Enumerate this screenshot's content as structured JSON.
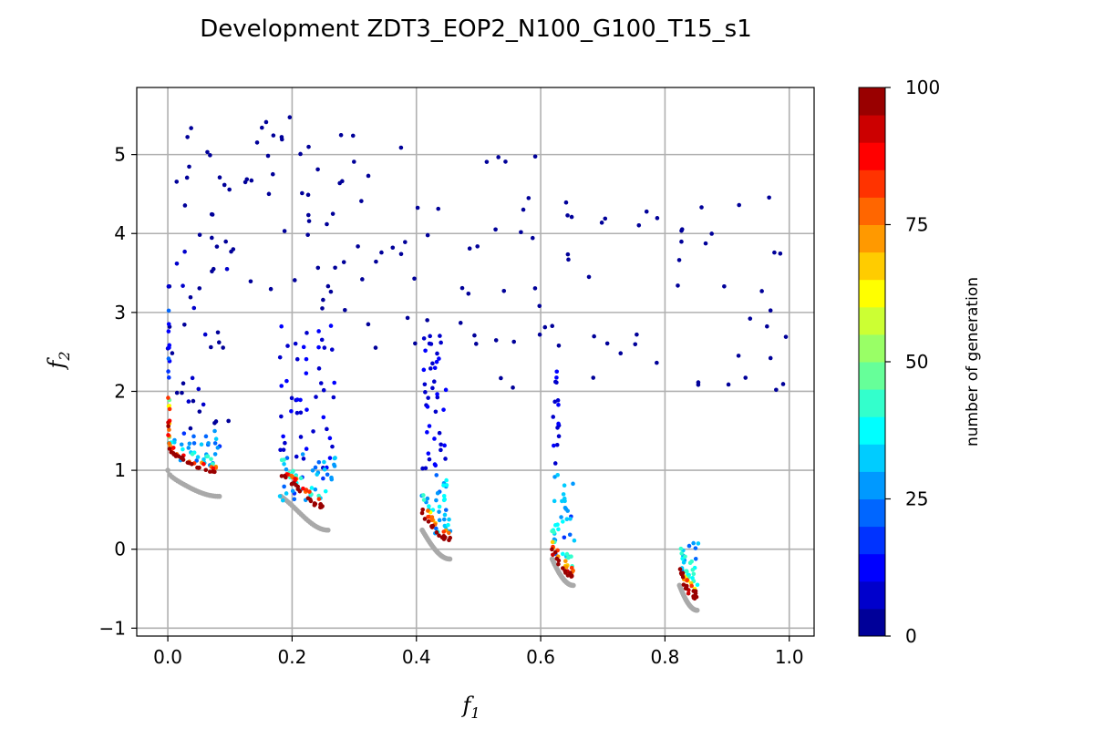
{
  "chart_data": {
    "type": "scatter",
    "title": "Development ZDT3_EOP2_N100_G100_T15_s1",
    "xlabel": "f",
    "xlabel_sub": "1",
    "ylabel": "f",
    "ylabel_sub": "2",
    "xlim": [
      -0.05,
      1.04
    ],
    "ylim": [
      -1.1,
      5.85
    ],
    "xticks": [
      0.0,
      0.2,
      0.4,
      0.6,
      0.8,
      1.0
    ],
    "xtick_labels": [
      "0.0",
      "0.2",
      "0.4",
      "0.6",
      "0.8",
      "1.0"
    ],
    "yticks": [
      -1,
      0,
      1,
      2,
      3,
      4,
      5
    ],
    "ytick_labels": [
      "−1",
      "0",
      "1",
      "2",
      "3",
      "4",
      "5"
    ],
    "grid": true,
    "colorbar": {
      "label": "number of generation",
      "min": 0,
      "max": 100,
      "ticks": [
        0,
        25,
        50,
        75,
        100
      ],
      "tick_labels": [
        "0",
        "25",
        "50",
        "75",
        "100"
      ],
      "colormap": "jet",
      "levels": 20
    },
    "pareto_front_color": "#a9a9a9",
    "pareto_segments": [
      [
        0.0,
        0.083,
        1.0,
        0.66
      ],
      [
        0.1822,
        0.2578,
        0.66,
        0.24
      ],
      [
        0.4093,
        0.4539,
        0.25,
        -0.15
      ],
      [
        0.6184,
        0.6525,
        -0.08,
        -0.46
      ],
      [
        0.8233,
        0.8518,
        -0.47,
        -0.77
      ]
    ],
    "clusters": [
      {
        "segment": 0,
        "gen": [
          96,
          100
        ],
        "n": 20,
        "shift": [
          0.3,
          0.32
        ],
        "jitter": 0.02
      },
      {
        "segment": 1,
        "gen": [
          96,
          100
        ],
        "n": 20,
        "shift": [
          0.26,
          0.3
        ],
        "jitter": 0.02
      },
      {
        "segment": 2,
        "gen": [
          96,
          100
        ],
        "n": 16,
        "shift": [
          0.22,
          0.28
        ],
        "jitter": 0.02
      },
      {
        "segment": 3,
        "gen": [
          94,
          100
        ],
        "n": 16,
        "shift": [
          0.1,
          0.15
        ],
        "jitter": 0.03
      },
      {
        "segment": 4,
        "gen": [
          94,
          100
        ],
        "n": 18,
        "shift": [
          0.14,
          0.25
        ],
        "jitter": 0.03
      },
      {
        "segment": 0,
        "gen": [
          72,
          90
        ],
        "n": 14,
        "shift": [
          0.33,
          0.4
        ],
        "jitter": 0.03
      },
      {
        "segment": 1,
        "gen": [
          72,
          90
        ],
        "n": 14,
        "shift": [
          0.31,
          0.38
        ],
        "jitter": 0.03
      },
      {
        "segment": 2,
        "gen": [
          62,
          85
        ],
        "n": 12,
        "shift": [
          0.3,
          0.38
        ],
        "jitter": 0.02
      },
      {
        "segment": 3,
        "gen": [
          60,
          85
        ],
        "n": 12,
        "shift": [
          0.18,
          0.25
        ],
        "jitter": 0.03
      },
      {
        "segment": 4,
        "gen": [
          60,
          85
        ],
        "n": 12,
        "shift": [
          0.22,
          0.32
        ],
        "jitter": 0.03
      },
      {
        "segment": 0,
        "gen": [
          28,
          45
        ],
        "n": 18,
        "shift": [
          0.38,
          0.5
        ],
        "jitter": 0.05
      },
      {
        "segment": 1,
        "gen": [
          28,
          45
        ],
        "n": 18,
        "shift": [
          0.35,
          0.48
        ],
        "jitter": 0.05
      },
      {
        "segment": 2,
        "gen": [
          25,
          45
        ],
        "n": 14,
        "shift": [
          0.35,
          0.5
        ],
        "jitter": 0.04
      },
      {
        "segment": 3,
        "gen": [
          25,
          45
        ],
        "n": 12,
        "shift": [
          0.25,
          0.4
        ],
        "jitter": 0.04
      },
      {
        "segment": 4,
        "gen": [
          25,
          45
        ],
        "n": 14,
        "shift": [
          0.3,
          0.5
        ],
        "jitter": 0.04
      }
    ],
    "rects": [
      {
        "x": [
          0.0,
          0.003
        ],
        "y": [
          1.3,
          2.0
        ],
        "gen": [
          40,
          100
        ],
        "n": 14
      },
      {
        "x": [
          0.0,
          0.003
        ],
        "y": [
          2.0,
          3.9
        ],
        "gen": [
          0,
          25
        ],
        "n": 14
      },
      {
        "x": [
          0.02,
          0.09
        ],
        "y": [
          1.0,
          1.5
        ],
        "gen": [
          18,
          35
        ],
        "n": 20
      },
      {
        "x": [
          0.003,
          0.1
        ],
        "y": [
          1.5,
          5.4
        ],
        "gen": [
          0,
          6
        ],
        "n": 46
      },
      {
        "x": [
          0.18,
          0.27
        ],
        "y": [
          0.6,
          1.3
        ],
        "gen": [
          18,
          35
        ],
        "n": 28
      },
      {
        "x": [
          0.18,
          0.27
        ],
        "y": [
          1.0,
          2.9
        ],
        "gen": [
          5,
          15
        ],
        "n": 48
      },
      {
        "x": [
          0.1,
          0.3
        ],
        "y": [
          3.0,
          5.5
        ],
        "gen": [
          0,
          5
        ],
        "n": 42
      },
      {
        "x": [
          0.43,
          0.45
        ],
        "y": [
          0.2,
          1.0
        ],
        "gen": [
          18,
          40
        ],
        "n": 22
      },
      {
        "x": [
          0.41,
          0.45
        ],
        "y": [
          1.0,
          2.9
        ],
        "gen": [
          5,
          15
        ],
        "n": 40
      },
      {
        "x": [
          0.3,
          0.6
        ],
        "y": [
          2.0,
          5.1
        ],
        "gen": [
          0,
          5
        ],
        "n": 40
      },
      {
        "x": [
          0.62,
          0.655
        ],
        "y": [
          -0.1,
          1.0
        ],
        "gen": [
          18,
          40
        ],
        "n": 26
      },
      {
        "x": [
          0.62,
          0.63
        ],
        "y": [
          1.0,
          2.3
        ],
        "gen": [
          5,
          15
        ],
        "n": 16
      },
      {
        "x": [
          0.58,
          0.8
        ],
        "y": [
          1.5,
          4.5
        ],
        "gen": [
          0,
          5
        ],
        "n": 24
      },
      {
        "x": [
          0.825,
          0.855
        ],
        "y": [
          -0.3,
          0.2
        ],
        "gen": [
          20,
          45
        ],
        "n": 16
      },
      {
        "x": [
          0.82,
          1.0
        ],
        "y": [
          2.0,
          4.6
        ],
        "gen": [
          0,
          5
        ],
        "n": 26
      }
    ]
  }
}
